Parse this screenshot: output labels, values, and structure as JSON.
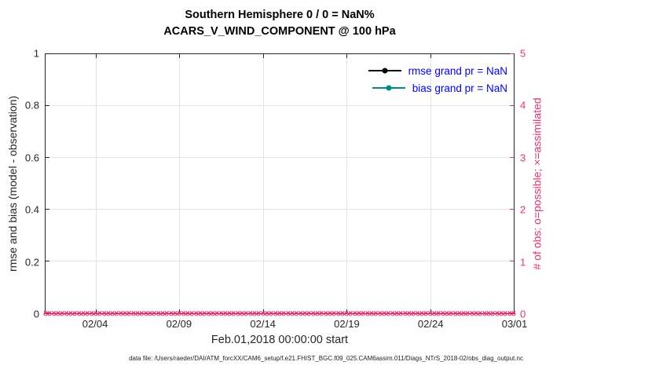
{
  "chart_data": {
    "type": "line",
    "title": "Southern Hemisphere 0 / 0 = NaN%",
    "subtitle": "ACARS_V_WIND_COMPONENT @ 100 hPa",
    "xlabel": "Feb.01,2018 00:00:00 start",
    "ylabel_left": "rmse and bias (model - observation)",
    "ylabel_right": "# of obs: o=possible; ×=assimilated",
    "x_ticks": [
      "02/04",
      "02/09",
      "02/14",
      "02/19",
      "02/24",
      "03/01"
    ],
    "x_tick_days": [
      3,
      8,
      13,
      18,
      23,
      28
    ],
    "x_total_days": 28,
    "y_left_ticks": [
      "0",
      "0.2",
      "0.4",
      "0.6",
      "0.8",
      "1"
    ],
    "y_left_values": [
      0,
      0.2,
      0.4,
      0.6,
      0.8,
      1
    ],
    "ylim_left": [
      0,
      1
    ],
    "y_right_ticks": [
      "0",
      "1",
      "2",
      "3",
      "4",
      "5"
    ],
    "y_right_values": [
      0,
      1,
      2,
      3,
      4,
      5
    ],
    "ylim_right": [
      0,
      5
    ],
    "grid": true,
    "legend_position": "top-right",
    "series": [
      {
        "name": "rmse grand pr = NaN",
        "color": "#000000",
        "marker": "filled-circle",
        "values": []
      },
      {
        "name": "bias grand pr = NaN",
        "color": "#008b8b",
        "marker": "filled-circle",
        "values": []
      }
    ],
    "obs_counts": {
      "possible_marker": "o",
      "assimilated_marker": "×",
      "n_times": 113,
      "constant_value": 0
    },
    "colors": {
      "right_axis": "#e8336e",
      "legend_text": "#0000ff",
      "grid": "#e3e3e3",
      "axis": "#262626"
    }
  },
  "footer": {
    "datafile": "data file: /Users/raeder/DAI/ATM_forcXX/CAM6_setup/f.e21.FHIST_BGC.f09_025.CAM6assim.011/Diags_NTrS_2018-02/obs_diag_output.nc"
  }
}
